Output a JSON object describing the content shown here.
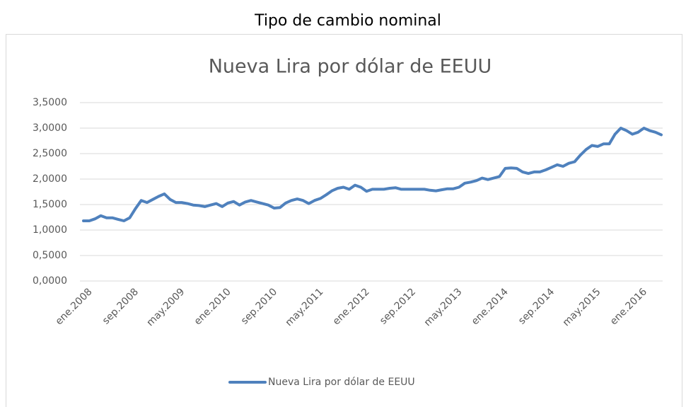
{
  "heading": "Tipo de cambio nominal",
  "chart_data": {
    "type": "line",
    "title": "Nueva Lira por dólar de EEUU",
    "categories": [
      "ene.2008",
      null,
      null,
      null,
      null,
      null,
      null,
      null,
      "sep.2008",
      null,
      null,
      null,
      null,
      null,
      null,
      null,
      "may.2009",
      null,
      null,
      null,
      null,
      null,
      null,
      null,
      "ene.2010",
      null,
      null,
      null,
      null,
      null,
      null,
      null,
      "sep.2010",
      null,
      null,
      null,
      null,
      null,
      null,
      null,
      "may.2011",
      null,
      null,
      null,
      null,
      null,
      null,
      null,
      "ene.2012",
      null,
      null,
      null,
      null,
      null,
      null,
      null,
      "sep.2012",
      null,
      null,
      null,
      null,
      null,
      null,
      null,
      "may.2013",
      null,
      null,
      null,
      null,
      null,
      null,
      null,
      "ene.2014",
      null,
      null,
      null,
      null,
      null,
      null,
      null,
      "sep.2014",
      null,
      null,
      null,
      null,
      null,
      null,
      null,
      "may.2015",
      null,
      null,
      null,
      null,
      null,
      null,
      null,
      "ene.2016",
      null,
      null,
      null,
      null
    ],
    "series": [
      {
        "name": "Nueva Lira por dólar de EEUU",
        "color": "#4f81bd",
        "values": [
          1.18,
          1.18,
          1.22,
          1.28,
          1.24,
          1.24,
          1.21,
          1.18,
          1.24,
          1.42,
          1.58,
          1.54,
          1.6,
          1.66,
          1.71,
          1.6,
          1.54,
          1.54,
          1.52,
          1.49,
          1.48,
          1.46,
          1.49,
          1.52,
          1.46,
          1.53,
          1.56,
          1.49,
          1.55,
          1.58,
          1.55,
          1.52,
          1.49,
          1.43,
          1.44,
          1.53,
          1.58,
          1.61,
          1.58,
          1.52,
          1.58,
          1.62,
          1.69,
          1.77,
          1.82,
          1.84,
          1.8,
          1.88,
          1.84,
          1.76,
          1.8,
          1.8,
          1.8,
          1.82,
          1.83,
          1.8,
          1.8,
          1.8,
          1.8,
          1.8,
          1.78,
          1.77,
          1.79,
          1.81,
          1.81,
          1.84,
          1.92,
          1.94,
          1.97,
          2.02,
          1.99,
          2.02,
          2.05,
          2.21,
          2.22,
          2.21,
          2.14,
          2.11,
          2.14,
          2.14,
          2.18,
          2.23,
          2.28,
          2.25,
          2.31,
          2.34,
          2.47,
          2.58,
          2.66,
          2.64,
          2.69,
          2.69,
          2.88,
          3.0,
          2.95,
          2.88,
          2.92,
          3.0,
          2.95,
          2.92,
          2.87
        ]
      }
    ],
    "ylim": [
      0,
      3.5
    ],
    "yticks": [
      {
        "value": 0,
        "label": "0,0000"
      },
      {
        "value": 0.5,
        "label": "0,5000"
      },
      {
        "value": 1,
        "label": "1,0000"
      },
      {
        "value": 1.5,
        "label": "1,5000"
      },
      {
        "value": 2,
        "label": "2,0000"
      },
      {
        "value": 2.5,
        "label": "2,5000"
      },
      {
        "value": 3,
        "label": "3,0000"
      },
      {
        "value": 3.5,
        "label": "3,5000"
      }
    ],
    "grid": true,
    "legend": "bottom"
  }
}
